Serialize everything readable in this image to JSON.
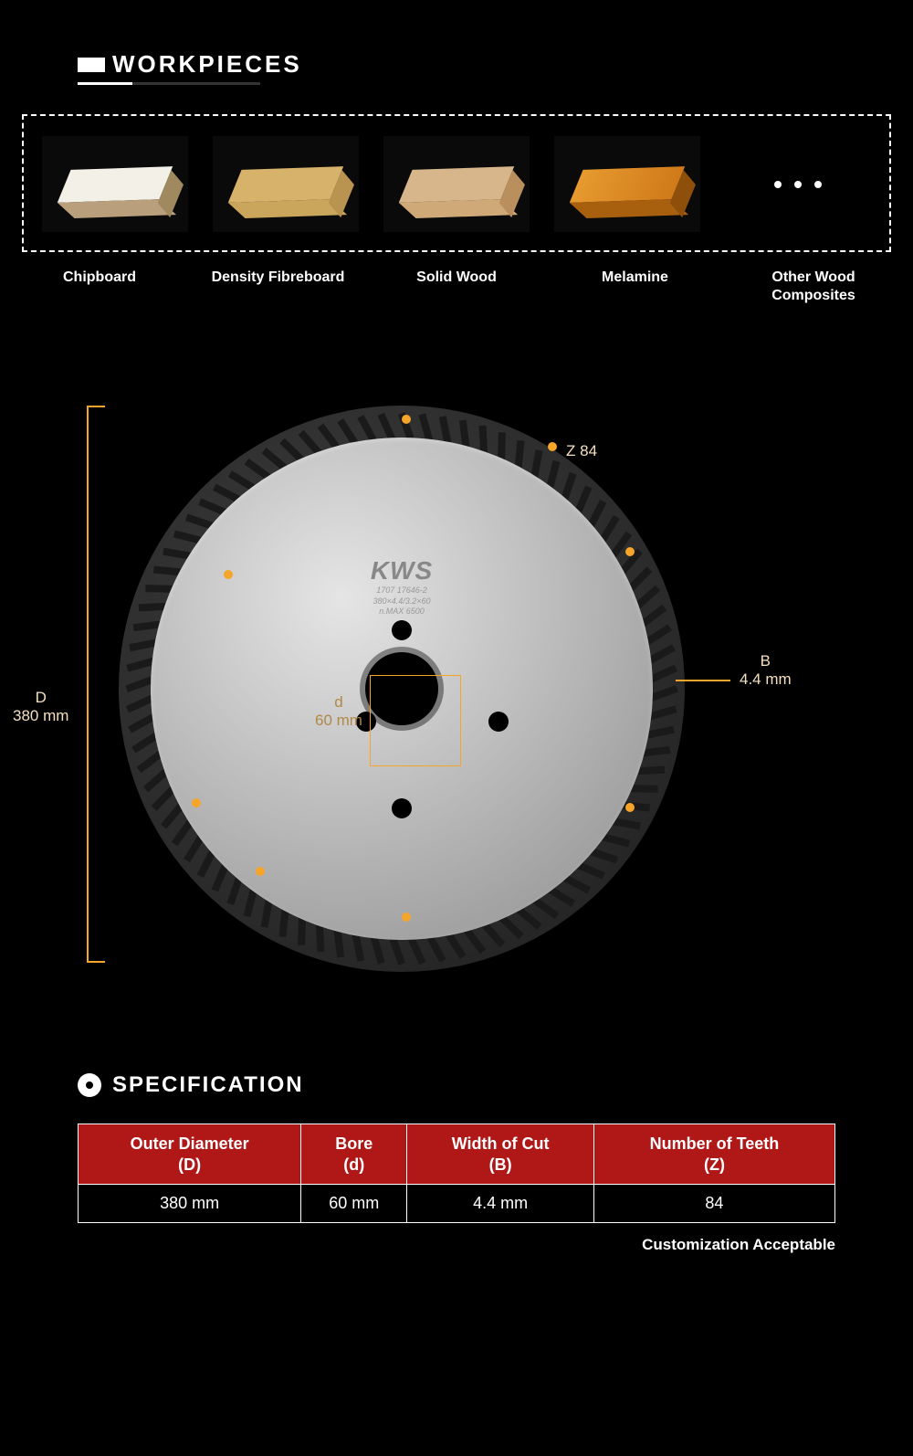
{
  "workpieces": {
    "heading": "WORKPIECES",
    "items": [
      {
        "label": "Chipboard",
        "top": "#f3f0e8",
        "front": "#b99f7c",
        "side": "#a0885f"
      },
      {
        "label": "Density Fibreboard",
        "top": "#d6b26a",
        "front": "#caa65c",
        "side": "#b89450"
      },
      {
        "label": "Solid Wood",
        "top": "#d8b68b",
        "front": "#cfa978",
        "side": "#b88f5d"
      },
      {
        "label": "Melamine",
        "top": "#e69a2f",
        "front": "#a8600f",
        "side": "#8e4f0b"
      }
    ],
    "more_label": "Other Wood Composites"
  },
  "blade": {
    "brand": "KWS",
    "brand_sub1": "1707 17646-2",
    "brand_sub2": "380×4.4/3.2×60",
    "brand_sub3": "n.MAX 6500",
    "accent_color": "#f4a52a",
    "disc_color": "#bdbdbd",
    "ring_color": "#2a2a2a",
    "teeth_count": 84,
    "callouts": {
      "Z": {
        "label": "Z",
        "value": "84"
      },
      "D": {
        "label": "D",
        "value": "380 mm"
      },
      "d": {
        "label": "d",
        "value": "60 mm"
      },
      "B": {
        "label": "B",
        "value": "4.4 mm"
      }
    }
  },
  "specification": {
    "heading": "SPECIFICATION",
    "header_bg": "#b01818",
    "columns": [
      {
        "title": "Outer Diameter",
        "sub": "(D)"
      },
      {
        "title": "Bore",
        "sub": "(d)"
      },
      {
        "title": "Width of Cut",
        "sub": "(B)"
      },
      {
        "title": "Number of Teeth",
        "sub": "(Z)"
      }
    ],
    "row": [
      "380 mm",
      "60 mm",
      "4.4 mm",
      "84"
    ],
    "footnote": "Customization Acceptable"
  }
}
